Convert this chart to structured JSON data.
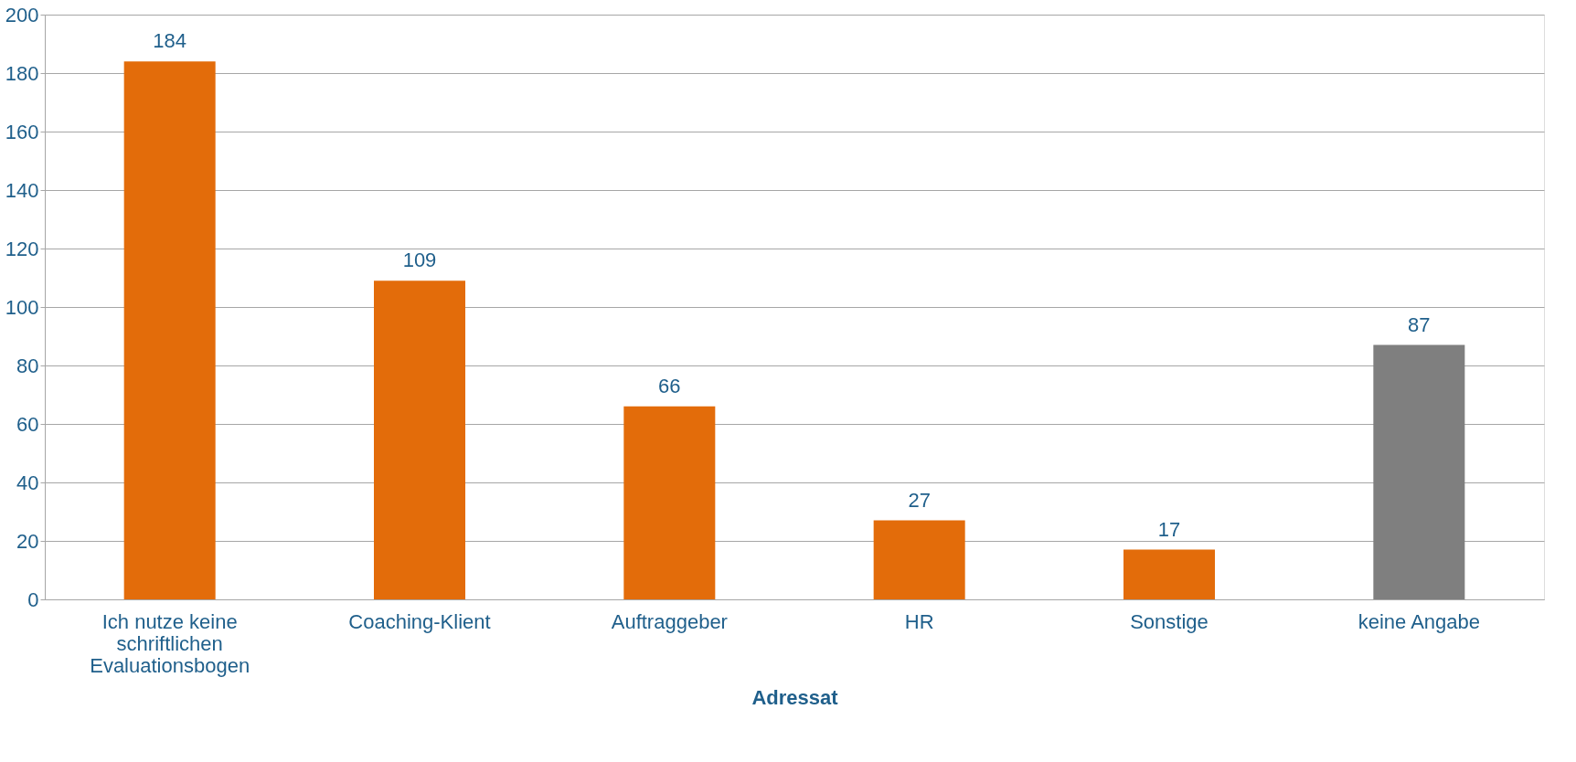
{
  "chart_data": {
    "type": "bar",
    "xlabel": "Adressat",
    "categories": [
      "Ich nutze keine schriftlichen Evaluationsbogen",
      "Coaching-Klient",
      "Auftraggeber",
      "HR",
      "Sonstige",
      "keine Angabe"
    ],
    "values": [
      184,
      109,
      66,
      27,
      17,
      87
    ],
    "colors": [
      "#e36c0a",
      "#e36c0a",
      "#e36c0a",
      "#e36c0a",
      "#e36c0a",
      "#7f7f7f"
    ],
    "ylim": [
      0,
      200
    ],
    "yticks": [
      0,
      20,
      40,
      60,
      80,
      100,
      120,
      140,
      160,
      180,
      200
    ],
    "grid": "y",
    "data_labels": true
  }
}
